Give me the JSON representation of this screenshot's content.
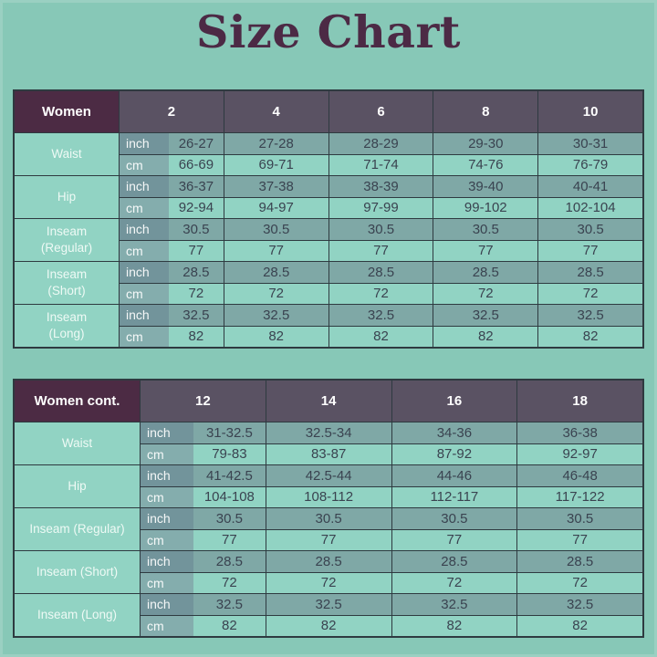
{
  "title": "Size Chart",
  "unit_labels": {
    "inch": "inch",
    "cm": "cm"
  },
  "colors": {
    "page_background": "#87c8b7",
    "title_text": "#4c2a45",
    "corner_header_bg": "#4c2b44",
    "size_header_bg": "#5a5263",
    "inch_row_bg": "#7fa8a6",
    "cm_row_bg": "#91d3c3",
    "inch_chip_bg": "#72949b",
    "cm_chip_bg": "#84adad",
    "value_text": "#3a4350",
    "border": "#2e3a40",
    "header_text": "#ffffff"
  },
  "chart_data": [
    {
      "type": "table",
      "header": "Women",
      "columns": [
        "2",
        "4",
        "6",
        "8",
        "10"
      ],
      "rows": [
        {
          "label": "Waist",
          "inch": [
            "26-27",
            "27-28",
            "28-29",
            "29-30",
            "30-31"
          ],
          "cm": [
            "66-69",
            "69-71",
            "71-74",
            "74-76",
            "76-79"
          ]
        },
        {
          "label": "Hip",
          "inch": [
            "36-37",
            "37-38",
            "38-39",
            "39-40",
            "40-41"
          ],
          "cm": [
            "92-94",
            "94-97",
            "97-99",
            "99-102",
            "102-104"
          ]
        },
        {
          "label": "Inseam (Regular)",
          "inch": [
            "30.5",
            "30.5",
            "30.5",
            "30.5",
            "30.5"
          ],
          "cm": [
            "77",
            "77",
            "77",
            "77",
            "77"
          ]
        },
        {
          "label": "Inseam (Short)",
          "inch": [
            "28.5",
            "28.5",
            "28.5",
            "28.5",
            "28.5"
          ],
          "cm": [
            "72",
            "72",
            "72",
            "72",
            "72"
          ]
        },
        {
          "label": "Inseam (Long)",
          "inch": [
            "32.5",
            "32.5",
            "32.5",
            "32.5",
            "32.5"
          ],
          "cm": [
            "82",
            "82",
            "82",
            "82",
            "82"
          ]
        }
      ]
    },
    {
      "type": "table",
      "header": "Women cont.",
      "columns": [
        "12",
        "14",
        "16",
        "18"
      ],
      "rows": [
        {
          "label": "Waist",
          "inch": [
            "31-32.5",
            "32.5-34",
            "34-36",
            "36-38"
          ],
          "cm": [
            "79-83",
            "83-87",
            "87-92",
            "92-97"
          ]
        },
        {
          "label": "Hip",
          "inch": [
            "41-42.5",
            "42.5-44",
            "44-46",
            "46-48"
          ],
          "cm": [
            "104-108",
            "108-112",
            "112-117",
            "117-122"
          ]
        },
        {
          "label": "Inseam (Regular)",
          "inch": [
            "30.5",
            "30.5",
            "30.5",
            "30.5"
          ],
          "cm": [
            "77",
            "77",
            "77",
            "77"
          ]
        },
        {
          "label": "Inseam (Short)",
          "inch": [
            "28.5",
            "28.5",
            "28.5",
            "28.5"
          ],
          "cm": [
            "72",
            "72",
            "72",
            "72"
          ]
        },
        {
          "label": "Inseam (Long)",
          "inch": [
            "32.5",
            "32.5",
            "32.5",
            "32.5"
          ],
          "cm": [
            "82",
            "82",
            "82",
            "82"
          ]
        }
      ]
    }
  ]
}
